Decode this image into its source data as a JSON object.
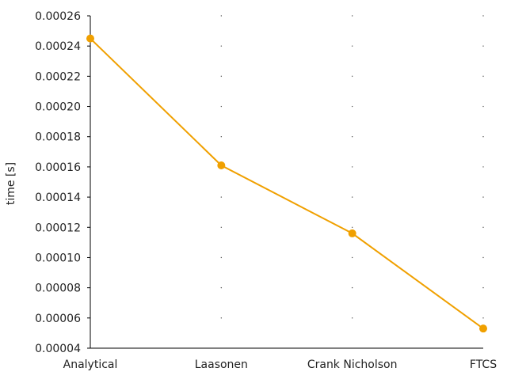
{
  "chart_data": {
    "type": "line",
    "title": "",
    "xlabel": "",
    "ylabel": "time [s]",
    "categories": [
      "Analytical",
      "Laasonen",
      "Crank Nicholson",
      "FTCS"
    ],
    "series": [
      {
        "values": [
          0.000245,
          0.000161,
          0.000116,
          5.3e-05
        ],
        "color": "#f0a000"
      }
    ],
    "ylim": [
      4e-05,
      0.00026
    ],
    "yticks": [
      4e-05,
      6e-05,
      8e-05,
      0.0001,
      0.00012,
      0.00014,
      0.00016,
      0.00018,
      0.0002,
      0.00022,
      0.00024,
      0.00026
    ],
    "ytick_labels": [
      "0.00004",
      "0.00006",
      "0.00008",
      "0.00010",
      "0.00012",
      "0.00014",
      "0.00016",
      "0.00018",
      "0.00020",
      "0.00022",
      "0.00024",
      "0.00026"
    ],
    "grid": "dotted",
    "legend": "none"
  }
}
